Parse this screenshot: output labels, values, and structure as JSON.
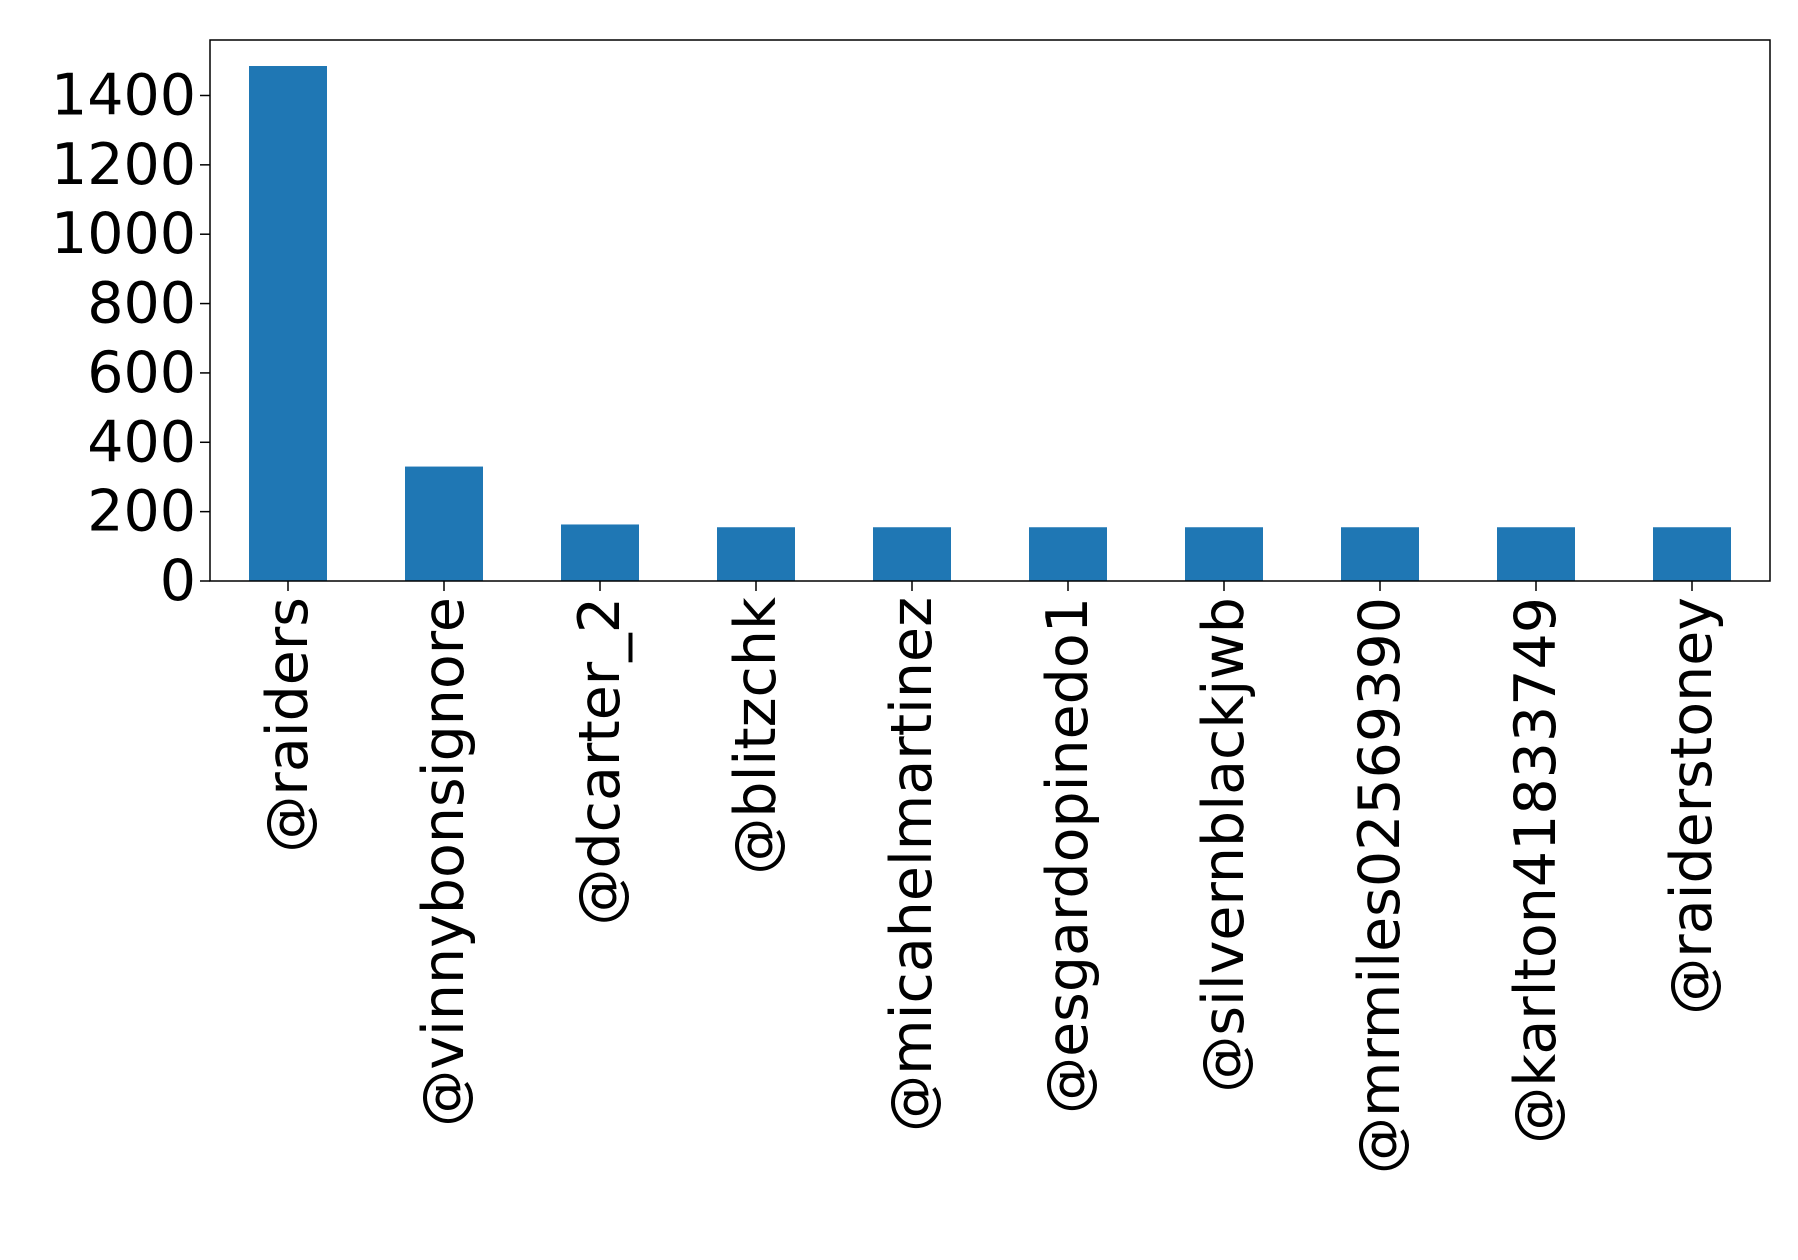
{
  "chart_data": {
    "type": "bar",
    "title": "",
    "xlabel": "",
    "ylabel": "",
    "categories": [
      "@raiders",
      "@vinnybonsignore",
      "@dcarter_2",
      "@blitzchk",
      "@micahelmartinez",
      "@esgardopinedo1",
      "@silvernblackjwb",
      "@mrmiles02569390",
      "@karlton41833749",
      "@raiderstoney"
    ],
    "values": [
      1485,
      330,
      163,
      155,
      155,
      155,
      155,
      155,
      155,
      155
    ],
    "ylim": [
      0,
      1560
    ],
    "yticks": [
      0,
      200,
      400,
      600,
      800,
      1000,
      1200,
      1400
    ],
    "grid": false,
    "legend": "none",
    "bar_color": "#1f77b4"
  }
}
